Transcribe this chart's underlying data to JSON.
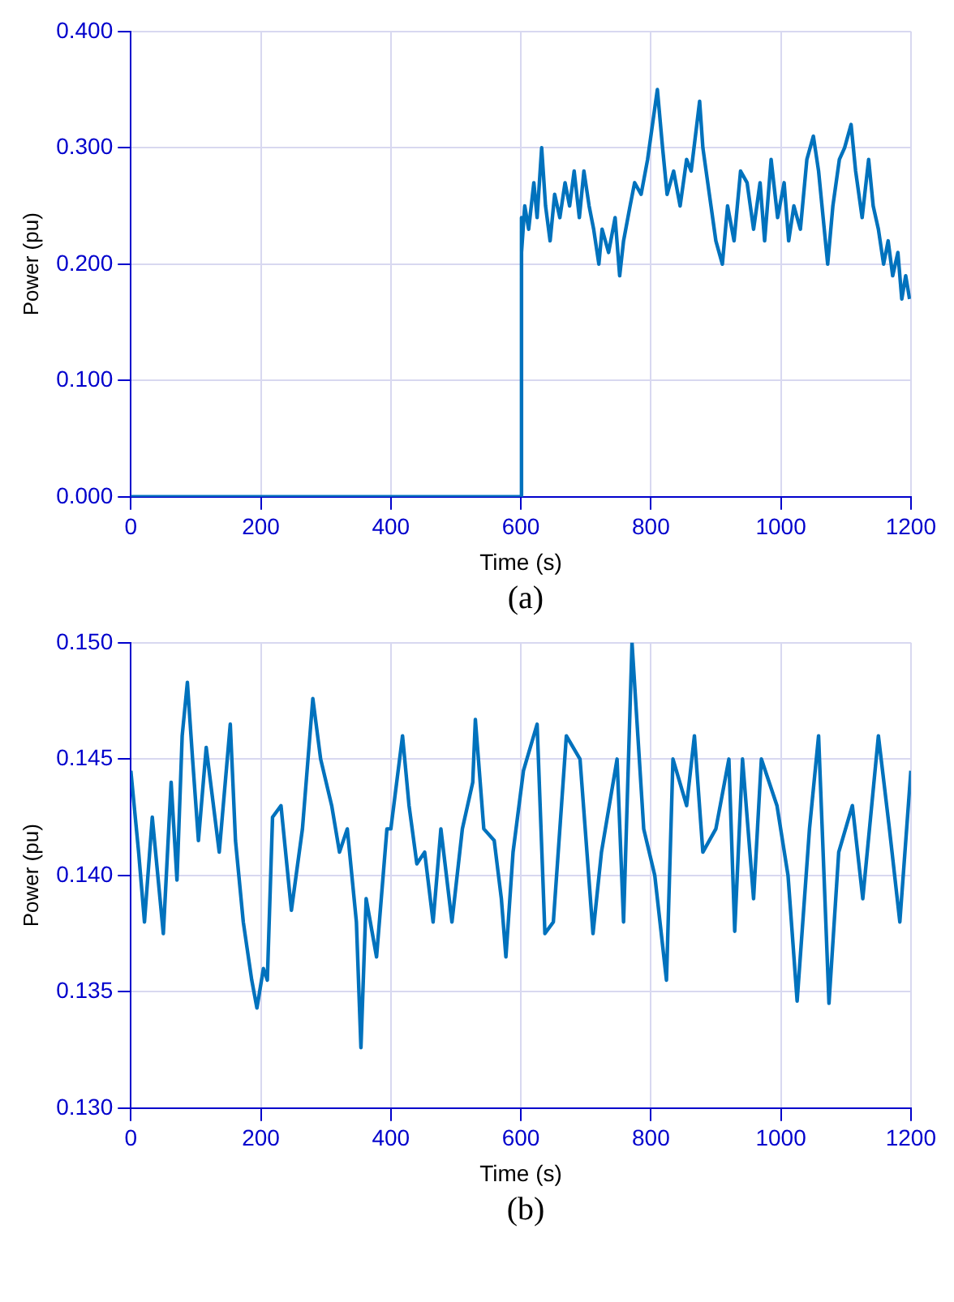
{
  "chart_data": [
    {
      "type": "line",
      "xlabel": "Time (s)",
      "ylabel": "Power (pu)",
      "annotations": [
        "(a)"
      ],
      "xlim": [
        0,
        1200
      ],
      "xticks": [
        0,
        200,
        400,
        600,
        800,
        1000,
        1200
      ],
      "ylim": [
        0,
        0.4
      ],
      "yticks": [
        {
          "value": 0,
          "label": "0.000"
        },
        {
          "value": 0.1,
          "label": "0.100"
        },
        {
          "value": 0.2,
          "label": "0.200"
        },
        {
          "value": 0.3,
          "label": "0.300"
        },
        {
          "value": 0.4,
          "label": "0.400"
        }
      ],
      "grid": true,
      "legend": false,
      "marker": "none",
      "line_style": "solid",
      "series": [
        {
          "color": "#0072bd",
          "x": [
            0,
            600,
            600,
            602,
            606,
            612,
            620,
            625,
            632,
            638,
            645,
            652,
            660,
            668,
            675,
            682,
            690,
            697,
            705,
            712,
            720,
            725,
            735,
            745,
            752,
            758,
            768,
            775,
            785,
            795,
            810,
            818,
            825,
            835,
            845,
            855,
            862,
            875,
            880,
            890,
            900,
            910,
            918,
            928,
            938,
            948,
            958,
            968,
            975,
            985,
            995,
            1005,
            1012,
            1020,
            1030,
            1040,
            1050,
            1058,
            1065,
            1072,
            1080,
            1090,
            1098,
            1108,
            1115,
            1125,
            1135,
            1142,
            1150,
            1158,
            1165,
            1172,
            1180,
            1186,
            1192,
            1198
          ],
          "values": [
            0,
            0,
            0.24,
            0.21,
            0.25,
            0.23,
            0.27,
            0.24,
            0.3,
            0.25,
            0.22,
            0.26,
            0.24,
            0.27,
            0.25,
            0.28,
            0.24,
            0.28,
            0.25,
            0.23,
            0.2,
            0.23,
            0.21,
            0.24,
            0.19,
            0.22,
            0.25,
            0.27,
            0.26,
            0.29,
            0.35,
            0.3,
            0.26,
            0.28,
            0.25,
            0.29,
            0.28,
            0.34,
            0.3,
            0.26,
            0.22,
            0.2,
            0.25,
            0.22,
            0.28,
            0.27,
            0.23,
            0.27,
            0.22,
            0.29,
            0.24,
            0.27,
            0.22,
            0.25,
            0.23,
            0.29,
            0.31,
            0.28,
            0.24,
            0.2,
            0.25,
            0.29,
            0.3,
            0.32,
            0.28,
            0.24,
            0.29,
            0.25,
            0.23,
            0.2,
            0.22,
            0.19,
            0.21,
            0.17,
            0.19,
            0.17
          ]
        }
      ]
    },
    {
      "type": "line",
      "xlabel": "Time (s)",
      "ylabel": "Power (pu)",
      "annotations": [
        "(b)"
      ],
      "xlim": [
        0,
        1200
      ],
      "xticks": [
        0,
        200,
        400,
        600,
        800,
        1000,
        1200
      ],
      "ylim": [
        0.13,
        0.15
      ],
      "yticks": [
        {
          "value": 0.13,
          "label": "0.130"
        },
        {
          "value": 0.135,
          "label": "0.135"
        },
        {
          "value": 0.14,
          "label": "0.140"
        },
        {
          "value": 0.145,
          "label": "0.145"
        },
        {
          "value": 0.15,
          "label": "0.150"
        }
      ],
      "grid": true,
      "legend": false,
      "marker": "none",
      "line_style": "solid",
      "series": [
        {
          "color": "#0072bd",
          "x": [
            0,
            12,
            21,
            33,
            50,
            62,
            71,
            79,
            87,
            95,
            104,
            116,
            136,
            153,
            161,
            173,
            186,
            194,
            204,
            210,
            218,
            231,
            247,
            264,
            280,
            292,
            309,
            321,
            333,
            347,
            354,
            362,
            378,
            394,
            400,
            418,
            428,
            440,
            452,
            465,
            477,
            494,
            510,
            526,
            530,
            543,
            559,
            570,
            577,
            588,
            604,
            625,
            637,
            650,
            670,
            691,
            711,
            724,
            748,
            758,
            771,
            789,
            806,
            824,
            834,
            855,
            867,
            880,
            900,
            920,
            929,
            941,
            958,
            970,
            994,
            1011,
            1025,
            1044,
            1058,
            1074,
            1089,
            1110,
            1126,
            1150,
            1167,
            1183,
            1200
          ],
          "values": [
            0.1445,
            0.141,
            0.138,
            0.1425,
            0.1375,
            0.144,
            0.1398,
            0.146,
            0.1483,
            0.145,
            0.1415,
            0.1455,
            0.141,
            0.1465,
            0.1415,
            0.138,
            0.1355,
            0.1343,
            0.136,
            0.1355,
            0.1425,
            0.143,
            0.1385,
            0.142,
            0.1476,
            0.145,
            0.143,
            0.141,
            0.142,
            0.138,
            0.1326,
            0.139,
            0.1365,
            0.142,
            0.142,
            0.146,
            0.143,
            0.1405,
            0.141,
            0.138,
            0.142,
            0.138,
            0.142,
            0.144,
            0.1467,
            0.142,
            0.1415,
            0.139,
            0.1365,
            0.141,
            0.1445,
            0.1465,
            0.1375,
            0.138,
            0.146,
            0.145,
            0.1375,
            0.141,
            0.145,
            0.138,
            0.15,
            0.142,
            0.14,
            0.1355,
            0.145,
            0.143,
            0.146,
            0.141,
            0.142,
            0.145,
            0.1376,
            0.145,
            0.139,
            0.145,
            0.143,
            0.14,
            0.1346,
            0.142,
            0.146,
            0.1345,
            0.141,
            0.143,
            0.139,
            0.146,
            0.142,
            0.138,
            0.1445
          ]
        }
      ]
    }
  ]
}
